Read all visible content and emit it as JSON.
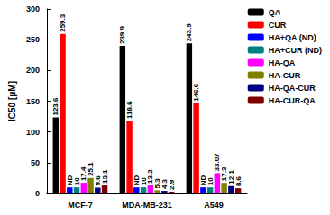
{
  "chart_data": {
    "type": "bar",
    "y_label": "IC50 [μM]",
    "categories": [
      "MCF-7",
      "MDA-MB-231",
      "A549"
    ],
    "series": [
      {
        "name": "QA",
        "color": "#000000",
        "values": [
          123.6,
          239.9,
          243.9
        ]
      },
      {
        "name": "CUR",
        "color": "#ff0000",
        "values": [
          259.3,
          118.6,
          146.6
        ]
      },
      {
        "name": "HA+QA (ND)",
        "color": "#0000ff",
        "values": [
          10,
          10,
          10
        ],
        "value_labels": [
          "ND",
          "ND",
          "ND"
        ]
      },
      {
        "name": "HA+CUR (ND)",
        "color": "#008080",
        "values": [
          10,
          10,
          10
        ]
      },
      {
        "name": "HA-QA",
        "color": "#ff00ff",
        "values": [
          17.4,
          13.2,
          33.07
        ]
      },
      {
        "name": "HA-CUR",
        "color": "#808000",
        "values": [
          25.1,
          5.3,
          17.3
        ]
      },
      {
        "name": "HA-QA-CUR",
        "color": "#000080",
        "values": [
          9.6,
          4.3,
          12.1
        ]
      },
      {
        "name": "HA-CUR-QA",
        "color": "#800000",
        "values": [
          13.1,
          2.9,
          8.6
        ]
      }
    ],
    "ylim": [
      0,
      300
    ],
    "yticks": [
      0,
      50,
      100,
      150,
      200,
      250,
      300
    ],
    "data_labels": true,
    "legend": "top-right",
    "grid": false
  }
}
